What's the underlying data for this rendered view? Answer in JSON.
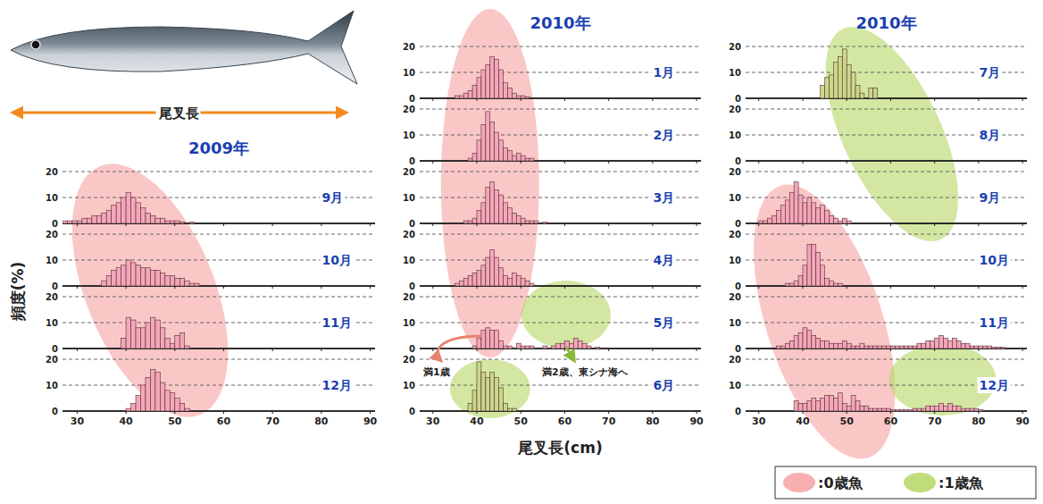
{
  "columns": [
    {
      "title": "2009年"
    },
    {
      "title": "2010年"
    },
    {
      "title": "2010年"
    }
  ],
  "fish_label": "尾叉長",
  "y_label": "頻度(%)",
  "x_label": "尾叉長(cm)",
  "annotations": [
    "満1歳",
    "満2歳、東シナ海へ"
  ],
  "age_groups": [
    {
      "name": ":0歳魚",
      "color": "#f7a1a1"
    },
    {
      "name": ":1歳魚",
      "color": "#b5d765"
    }
  ],
  "chart_data": [
    {
      "type": "histogram",
      "title": "9月",
      "color": "#f3a7b9",
      "bins": [
        27,
        28,
        29,
        30,
        31,
        32,
        33,
        34,
        35,
        36,
        37,
        38,
        39,
        40,
        41,
        42,
        43,
        44,
        45,
        46,
        47,
        48,
        49,
        50,
        51,
        52,
        53,
        54
      ],
      "values": [
        1,
        1,
        1,
        1,
        2,
        2,
        3,
        3,
        4,
        5,
        7,
        8,
        10,
        12,
        10,
        8,
        6,
        4,
        3,
        2,
        2,
        1,
        1,
        1,
        0.5,
        0,
        0.5
      ],
      "xlim": [
        27,
        91
      ],
      "ylim": [
        0,
        20
      ],
      "xticks": [
        30,
        40,
        50,
        60,
        70,
        80,
        90
      ],
      "yticks": [
        0,
        10,
        20
      ],
      "grid": true,
      "tick_labels": "y"
    },
    {
      "type": "histogram",
      "title": "10月",
      "color": "#f3a7b9",
      "bins": [
        35,
        36,
        37,
        38,
        39,
        40,
        41,
        42,
        43,
        44,
        45,
        46,
        47,
        48,
        49,
        50,
        51,
        52,
        53,
        54,
        55
      ],
      "values": [
        2,
        4,
        6,
        7,
        8,
        10,
        9,
        8,
        7,
        7,
        6,
        6,
        5,
        4,
        4,
        3,
        3,
        2,
        1,
        1
      ],
      "xlim": [
        27,
        91
      ],
      "ylim": [
        0,
        20
      ],
      "xticks": [
        30,
        40,
        50,
        60,
        70,
        80,
        90
      ],
      "yticks": [
        0,
        10,
        20
      ],
      "grid": true,
      "tick_labels": "y"
    },
    {
      "type": "histogram",
      "title": "11月",
      "color": "#f3a7b9",
      "bins": [
        39,
        40,
        41,
        42,
        43,
        44,
        45,
        46,
        47,
        48,
        49,
        50,
        51,
        52,
        53
      ],
      "values": [
        4,
        12,
        11,
        8,
        8,
        10,
        12,
        11,
        8,
        4,
        2,
        5,
        6,
        1
      ],
      "xlim": [
        27,
        91
      ],
      "ylim": [
        0,
        20
      ],
      "xticks": [
        30,
        40,
        50,
        60,
        70,
        80,
        90
      ],
      "yticks": [
        0,
        10,
        20
      ],
      "grid": true,
      "tick_labels": "y"
    },
    {
      "type": "histogram",
      "title": "12月",
      "color": "#f3a7b9",
      "bins": [
        40,
        41,
        42,
        43,
        44,
        45,
        46,
        47,
        48,
        49,
        50,
        51,
        52,
        53
      ],
      "values": [
        1,
        3,
        6,
        10,
        13,
        16,
        15,
        11,
        8,
        7,
        5,
        3,
        1
      ],
      "xlim": [
        27,
        91
      ],
      "ylim": [
        0,
        20
      ],
      "xticks": [
        30,
        40,
        50,
        60,
        70,
        80,
        90
      ],
      "yticks": [
        0,
        10,
        20
      ],
      "grid": true
    },
    {
      "type": "histogram",
      "title": "1月",
      "color": "#f3a7b9",
      "bins": [
        35,
        36,
        37,
        38,
        39,
        40,
        41,
        42,
        43,
        44,
        45,
        46,
        47,
        48,
        49,
        50,
        51,
        52
      ],
      "values": [
        1,
        1,
        2,
        3,
        5,
        8,
        11,
        13,
        16,
        15,
        11,
        6,
        4,
        2,
        1,
        1,
        0.5
      ],
      "xlim": [
        27,
        91
      ],
      "ylim": [
        0,
        20
      ],
      "xticks": [
        30,
        40,
        50,
        60,
        70,
        80,
        90
      ],
      "yticks": [
        0,
        10,
        20
      ],
      "grid": true,
      "tick_labels": "y"
    },
    {
      "type": "histogram",
      "title": "2月",
      "color": "#f3a7b9",
      "bins": [
        38,
        39,
        40,
        41,
        42,
        43,
        44,
        45,
        46,
        47,
        48,
        49,
        50,
        51,
        52,
        53
      ],
      "values": [
        1,
        3,
        8,
        14,
        19,
        15,
        11,
        8,
        5,
        4,
        2,
        3,
        2,
        1,
        1
      ],
      "xlim": [
        27,
        91
      ],
      "ylim": [
        0,
        20
      ],
      "xticks": [
        30,
        40,
        50,
        60,
        70,
        80,
        90
      ],
      "yticks": [
        0,
        10,
        20
      ],
      "grid": true,
      "tick_labels": "y"
    },
    {
      "type": "histogram",
      "title": "3月",
      "color": "#f3a7b9",
      "bins": [
        37,
        38,
        39,
        40,
        41,
        42,
        43,
        44,
        45,
        46,
        47,
        48,
        49,
        50,
        51,
        52,
        53,
        54,
        55,
        56
      ],
      "values": [
        1,
        1,
        2,
        5,
        8,
        14,
        16,
        13,
        11,
        8,
        6,
        4,
        3,
        2,
        1,
        1,
        1,
        0,
        0.5
      ],
      "xlim": [
        27,
        91
      ],
      "ylim": [
        0,
        20
      ],
      "xticks": [
        30,
        40,
        50,
        60,
        70,
        80,
        90
      ],
      "yticks": [
        0,
        10,
        20
      ],
      "grid": true,
      "tick_labels": "y"
    },
    {
      "type": "histogram",
      "title": "4月",
      "color": "#f3a7b9",
      "bins": [
        35,
        36,
        37,
        38,
        39,
        40,
        41,
        42,
        43,
        44,
        45,
        46,
        47,
        48,
        49,
        50,
        51,
        52,
        53
      ],
      "values": [
        1,
        2,
        3,
        4,
        5,
        6,
        8,
        11,
        14,
        11,
        7,
        4,
        3,
        5,
        4,
        3,
        2,
        1
      ],
      "xlim": [
        27,
        91
      ],
      "ylim": [
        0,
        20
      ],
      "xticks": [
        30,
        40,
        50,
        60,
        70,
        80,
        90
      ],
      "yticks": [
        0,
        10,
        20
      ],
      "grid": true,
      "tick_labels": "y"
    },
    {
      "type": "histogram",
      "title": "5月",
      "color": "#f3a7b9",
      "bins": [
        39,
        40,
        41,
        42,
        43,
        44,
        45,
        46,
        47,
        48,
        49,
        50,
        51,
        52,
        53,
        54,
        55,
        56,
        57,
        58,
        59,
        60,
        61,
        62,
        63,
        64,
        65,
        66,
        67,
        68
      ],
      "values": [
        1,
        4,
        7,
        8,
        7,
        7,
        3,
        1,
        1,
        0,
        2,
        1,
        1,
        1,
        0,
        0,
        1,
        0,
        1,
        2,
        2,
        3,
        2,
        4,
        3,
        2,
        1,
        0,
        0.5
      ],
      "xlim": [
        27,
        91
      ],
      "ylim": [
        0,
        20
      ],
      "xticks": [
        30,
        40,
        50,
        60,
        70,
        80,
        90
      ],
      "yticks": [
        0,
        10,
        20
      ],
      "grid": true,
      "tick_labels": "y"
    },
    {
      "type": "histogram",
      "title": "6月",
      "color": "#c9d98a",
      "bins": [
        38,
        39,
        40,
        41,
        42,
        43,
        44,
        45,
        46,
        47,
        48,
        49
      ],
      "values": [
        3,
        8,
        19,
        15,
        13,
        15,
        13,
        9,
        3,
        1,
        1
      ],
      "xlim": [
        27,
        91
      ],
      "ylim": [
        0,
        20
      ],
      "xticks": [
        30,
        40,
        50,
        60,
        70,
        80,
        90
      ],
      "yticks": [
        0,
        10,
        20
      ],
      "grid": true
    },
    {
      "type": "histogram",
      "title": "7月",
      "color": "#c9d98a",
      "bins": [
        44,
        45,
        46,
        47,
        48,
        49,
        50,
        51,
        52,
        53,
        54,
        55,
        56,
        57
      ],
      "values": [
        5,
        8,
        9,
        14,
        16,
        19,
        13,
        10,
        5,
        2,
        0,
        4,
        4
      ],
      "xlim": [
        27,
        91
      ],
      "ylim": [
        0,
        20
      ],
      "xticks": [
        30,
        40,
        50,
        60,
        70,
        80,
        90
      ],
      "yticks": [
        0,
        10,
        20
      ],
      "grid": true,
      "tick_labels": "y"
    },
    {
      "type": "histogram",
      "title": "8月",
      "xlim": [
        27,
        91
      ],
      "ylim": [
        0,
        20
      ],
      "xticks": [
        30,
        40,
        50,
        60,
        70,
        80,
        90
      ],
      "yticks": [
        0,
        10,
        20
      ],
      "grid": true,
      "tick_labels": "y"
    },
    {
      "type": "histogram",
      "title": "9月",
      "color": "#f3a7b9",
      "bins": [
        30,
        31,
        32,
        33,
        34,
        35,
        36,
        37,
        38,
        39,
        40,
        41,
        42,
        43,
        44,
        45,
        46,
        47,
        48,
        49,
        50,
        51
      ],
      "values": [
        1,
        1,
        2,
        3,
        5,
        7,
        9,
        12,
        16,
        11,
        8,
        10,
        8,
        6,
        7,
        5,
        3,
        2,
        1,
        2,
        1
      ],
      "xlim": [
        27,
        91
      ],
      "ylim": [
        0,
        20
      ],
      "xticks": [
        30,
        40,
        50,
        60,
        70,
        80,
        90
      ],
      "yticks": [
        0,
        10,
        20
      ],
      "grid": true,
      "tick_labels": "y"
    },
    {
      "type": "histogram",
      "title": "10月",
      "color": "#f3a7b9",
      "bins": [
        36,
        37,
        38,
        39,
        40,
        41,
        42,
        43,
        44,
        45,
        46,
        47,
        48,
        49
      ],
      "values": [
        1,
        1,
        2,
        4,
        8,
        16,
        16,
        13,
        8,
        3,
        2,
        1,
        1
      ],
      "xlim": [
        27,
        91
      ],
      "ylim": [
        0,
        20
      ],
      "xticks": [
        30,
        40,
        50,
        60,
        70,
        80,
        90
      ],
      "yticks": [
        0,
        10,
        20
      ],
      "grid": true,
      "tick_labels": "y"
    },
    {
      "type": "histogram",
      "title": "11月",
      "color": "#f3a7b9",
      "bins": [
        34,
        35,
        36,
        37,
        38,
        39,
        40,
        41,
        42,
        43,
        44,
        45,
        46,
        47,
        48,
        49,
        50,
        51,
        52,
        53,
        54,
        55,
        56,
        57,
        58,
        59,
        60,
        61,
        62,
        63,
        64,
        65,
        66,
        67,
        68,
        69,
        70,
        71,
        72,
        73,
        74,
        75,
        76,
        77,
        78,
        79,
        80,
        81,
        82,
        83,
        84,
        85,
        86
      ],
      "values": [
        1,
        1,
        2,
        3,
        5,
        6,
        8,
        7,
        5,
        4,
        3,
        3,
        2,
        2,
        2,
        3,
        2,
        1,
        1,
        2,
        1,
        1,
        1,
        1,
        1,
        1,
        1,
        1,
        1,
        1,
        1,
        1,
        2,
        2,
        3,
        3,
        4,
        5,
        4,
        3,
        4,
        3,
        2,
        2,
        1,
        1,
        1,
        1,
        1,
        0.5,
        0.5,
        0.5
      ],
      "xlim": [
        27,
        91
      ],
      "ylim": [
        0,
        20
      ],
      "xticks": [
        30,
        40,
        50,
        60,
        70,
        80,
        90
      ],
      "yticks": [
        0,
        10,
        20
      ],
      "grid": true,
      "tick_labels": "y"
    },
    {
      "type": "histogram",
      "title": "12月",
      "color": "#f3a7b9",
      "bins": [
        38,
        39,
        40,
        41,
        42,
        43,
        44,
        45,
        46,
        47,
        48,
        49,
        50,
        51,
        52,
        53,
        54,
        55,
        56,
        57,
        58,
        59,
        60,
        61,
        62,
        63,
        64,
        65,
        66,
        67,
        68,
        69,
        70,
        71,
        72,
        73,
        74,
        75,
        76,
        77,
        78,
        79,
        80,
        81
      ],
      "values": [
        4,
        3,
        3,
        4,
        5,
        4,
        5,
        6,
        6,
        5,
        7,
        3,
        2,
        6,
        4,
        2,
        2,
        1,
        1,
        1,
        1,
        1,
        0.5,
        0.5,
        0.5,
        0.5,
        0.5,
        1,
        1,
        1,
        2,
        2,
        2,
        3,
        2,
        3,
        2,
        2,
        1,
        1,
        1,
        1,
        0.5
      ],
      "xlim": [
        27,
        91
      ],
      "ylim": [
        0,
        20
      ],
      "xticks": [
        30,
        40,
        50,
        60,
        70,
        80,
        90
      ],
      "yticks": [
        0,
        10,
        20
      ],
      "grid": true
    }
  ]
}
